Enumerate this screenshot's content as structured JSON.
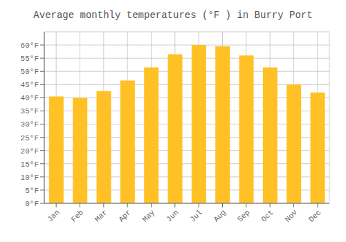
{
  "chart_data": {
    "type": "bar",
    "title": "Average monthly temperatures (°F ) in Burry Port",
    "categories": [
      "Jan",
      "Feb",
      "Mar",
      "Apr",
      "May",
      "Jun",
      "Jul",
      "Aug",
      "Sep",
      "Oct",
      "Nov",
      "Dec"
    ],
    "values": [
      40.5,
      40.0,
      42.5,
      46.5,
      51.5,
      56.5,
      60.0,
      59.5,
      56.0,
      51.5,
      45.0,
      42.0
    ],
    "color": "#FFC125",
    "ylim": [
      0,
      65
    ],
    "yticks": [
      {
        "value": 0,
        "label": "0°F"
      },
      {
        "value": 5,
        "label": "5°F"
      },
      {
        "value": 10,
        "label": "10°F"
      },
      {
        "value": 15,
        "label": "15°F"
      },
      {
        "value": 20,
        "label": "20°F"
      },
      {
        "value": 25,
        "label": "25°F"
      },
      {
        "value": 30,
        "label": "30°F"
      },
      {
        "value": 35,
        "label": "35°F"
      },
      {
        "value": 40,
        "label": "40°F"
      },
      {
        "value": 45,
        "label": "45°F"
      },
      {
        "value": 50,
        "label": "50°F"
      },
      {
        "value": 55,
        "label": "55°F"
      },
      {
        "value": 60,
        "label": "60°F"
      }
    ],
    "grid": true
  }
}
